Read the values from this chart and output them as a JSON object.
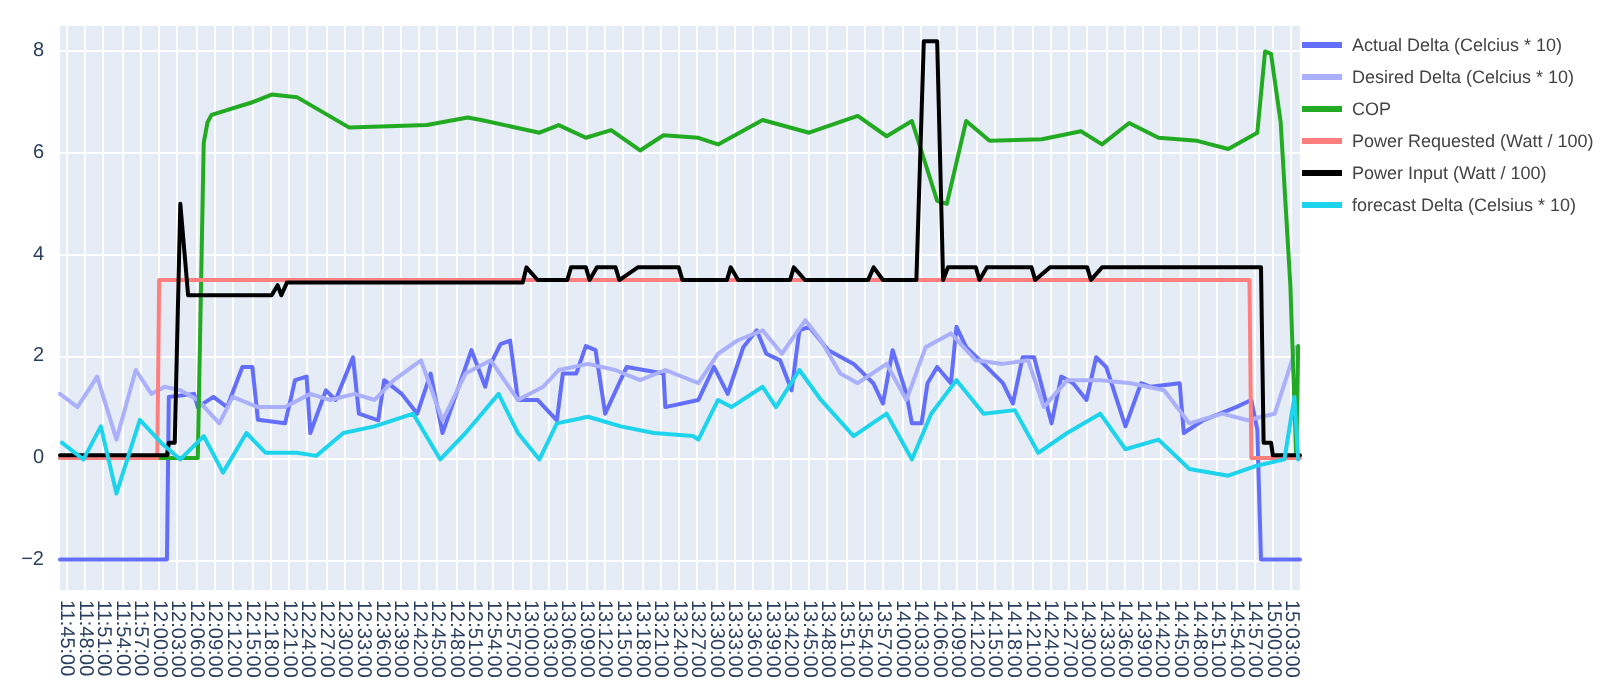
{
  "chart_data": {
    "type": "line",
    "grid": true,
    "legend": "top right",
    "marker": "none",
    "line_style": "solid",
    "xlim": [
      11.734,
      15.073
    ],
    "ylim": [
      -2.6,
      8.5
    ],
    "yticks": [
      {
        "value": -2,
        "label": "−2"
      },
      0,
      2,
      4,
      6,
      8
    ],
    "xticks": [
      {
        "value": 11.75,
        "label": "11:45:00"
      },
      {
        "value": 11.8,
        "label": "11:48:00"
      },
      {
        "value": 11.85,
        "label": "11:51:00"
      },
      {
        "value": 11.9,
        "label": "11:54:00"
      },
      {
        "value": 11.95,
        "label": "11:57:00"
      },
      {
        "value": 12,
        "label": "12:00:00"
      },
      {
        "value": 12.05,
        "label": "12:03:00"
      },
      {
        "value": 12.1,
        "label": "12:06:00"
      },
      {
        "value": 12.15,
        "label": "12:09:00"
      },
      {
        "value": 12.2,
        "label": "12:12:00"
      },
      {
        "value": 12.25,
        "label": "12:15:00"
      },
      {
        "value": 12.3,
        "label": "12:18:00"
      },
      {
        "value": 12.35,
        "label": "12:21:00"
      },
      {
        "value": 12.4,
        "label": "12:24:00"
      },
      {
        "value": 12.45,
        "label": "12:27:00"
      },
      {
        "value": 12.5,
        "label": "12:30:00"
      },
      {
        "value": 12.55,
        "label": "12:33:00"
      },
      {
        "value": 12.6,
        "label": "12:36:00"
      },
      {
        "value": 12.65,
        "label": "12:39:00"
      },
      {
        "value": 12.7,
        "label": "12:42:00"
      },
      {
        "value": 12.75,
        "label": "12:45:00"
      },
      {
        "value": 12.8,
        "label": "12:48:00"
      },
      {
        "value": 12.85,
        "label": "12:51:00"
      },
      {
        "value": 12.9,
        "label": "12:54:00"
      },
      {
        "value": 12.95,
        "label": "12:57:00"
      },
      {
        "value": 13,
        "label": "13:00:00"
      },
      {
        "value": 13.05,
        "label": "13:03:00"
      },
      {
        "value": 13.1,
        "label": "13:06:00"
      },
      {
        "value": 13.15,
        "label": "13:09:00"
      },
      {
        "value": 13.2,
        "label": "13:12:00"
      },
      {
        "value": 13.25,
        "label": "13:15:00"
      },
      {
        "value": 13.3,
        "label": "13:18:00"
      },
      {
        "value": 13.35,
        "label": "13:21:00"
      },
      {
        "value": 13.4,
        "label": "13:24:00"
      },
      {
        "value": 13.45,
        "label": "13:27:00"
      },
      {
        "value": 13.5,
        "label": "13:30:00"
      },
      {
        "value": 13.55,
        "label": "13:33:00"
      },
      {
        "value": 13.6,
        "label": "13:36:00"
      },
      {
        "value": 13.65,
        "label": "13:39:00"
      },
      {
        "value": 13.7,
        "label": "13:42:00"
      },
      {
        "value": 13.75,
        "label": "13:45:00"
      },
      {
        "value": 13.8,
        "label": "13:48:00"
      },
      {
        "value": 13.85,
        "label": "13:51:00"
      },
      {
        "value": 13.9,
        "label": "13:54:00"
      },
      {
        "value": 13.95,
        "label": "13:57:00"
      },
      {
        "value": 14,
        "label": "14:00:00"
      },
      {
        "value": 14.05,
        "label": "14:03:00"
      },
      {
        "value": 14.1,
        "label": "14:06:00"
      },
      {
        "value": 14.15,
        "label": "14:09:00"
      },
      {
        "value": 14.2,
        "label": "14:12:00"
      },
      {
        "value": 14.25,
        "label": "14:15:00"
      },
      {
        "value": 14.3,
        "label": "14:18:00"
      },
      {
        "value": 14.35,
        "label": "14:21:00"
      },
      {
        "value": 14.4,
        "label": "14:24:00"
      },
      {
        "value": 14.45,
        "label": "14:27:00"
      },
      {
        "value": 14.5,
        "label": "14:30:00"
      },
      {
        "value": 14.55,
        "label": "14:33:00"
      },
      {
        "value": 14.6,
        "label": "14:36:00"
      },
      {
        "value": 14.65,
        "label": "14:39:00"
      },
      {
        "value": 14.7,
        "label": "14:42:00"
      },
      {
        "value": 14.75,
        "label": "14:45:00"
      },
      {
        "value": 14.8,
        "label": "14:48:00"
      },
      {
        "value": 14.85,
        "label": "14:51:00"
      },
      {
        "value": 14.9,
        "label": "14:54:00"
      },
      {
        "value": 14.95,
        "label": "14:57:00"
      },
      {
        "value": 15,
        "label": "15:00:00"
      },
      {
        "value": 15.05,
        "label": "15:03:00"
      }
    ],
    "series": [
      {
        "name": "Actual Delta (Celcius * 10)",
        "color": "#636efa",
        "x": [
          11.734,
          12.022,
          12.027,
          12.095,
          12.105,
          12.147,
          12.184,
          12.225,
          12.252,
          12.267,
          12.34,
          12.367,
          12.398,
          12.408,
          12.45,
          12.476,
          12.523,
          12.539,
          12.591,
          12.607,
          12.654,
          12.696,
          12.732,
          12.764,
          12.811,
          12.842,
          12.879,
          12.894,
          12.92,
          12.946,
          12.967,
          13.02,
          13.072,
          13.088,
          13.124,
          13.15,
          13.176,
          13.202,
          13.26,
          13.359,
          13.364,
          13.453,
          13.495,
          13.532,
          13.574,
          13.61,
          13.636,
          13.673,
          13.704,
          13.725,
          13.751,
          13.803,
          13.871,
          13.924,
          13.95,
          13.976,
          14.013,
          14.028,
          14.054,
          14.07,
          14.096,
          14.133,
          14.148,
          14.174,
          14.221,
          14.273,
          14.3,
          14.326,
          14.357,
          14.404,
          14.43,
          14.462,
          14.498,
          14.524,
          14.551,
          14.603,
          14.645,
          14.671,
          14.749,
          14.76,
          14.812,
          14.901,
          14.942,
          14.958,
          14.968,
          15.073
        ],
        "values": [
          -2,
          -2,
          1.2,
          1.26,
          1.0,
          1.2,
          1.0,
          1.79,
          1.79,
          0.75,
          0.68,
          1.53,
          1.6,
          0.49,
          1.33,
          1.14,
          1.98,
          0.87,
          0.74,
          1.53,
          1.26,
          0.87,
          1.66,
          0.49,
          1.47,
          2.12,
          1.4,
          1.85,
          2.24,
          2.31,
          1.14,
          1.14,
          0.74,
          1.66,
          1.66,
          2.2,
          2.12,
          0.87,
          1.79,
          1.66,
          1.0,
          1.14,
          1.79,
          1.26,
          2.18,
          2.51,
          2.05,
          1.92,
          1.33,
          2.51,
          2.58,
          2.12,
          1.85,
          1.47,
          1.07,
          2.12,
          1.26,
          0.68,
          0.68,
          1.47,
          1.79,
          1.47,
          2.58,
          2.18,
          1.85,
          1.47,
          1.07,
          1.98,
          1.98,
          0.68,
          1.6,
          1.47,
          1.14,
          1.98,
          1.79,
          0.62,
          1.47,
          1.4,
          1.47,
          0.49,
          0.74,
          1.0,
          1.14,
          0.55,
          -2,
          -2
        ]
      },
      {
        "name": "Desired Delta (Celcius * 10)",
        "color": "#aab0fb",
        "x": [
          11.734,
          11.781,
          11.834,
          11.886,
          11.938,
          11.98,
          12.016,
          12.058,
          12.105,
          12.163,
          12.199,
          12.267,
          12.34,
          12.408,
          12.461,
          12.528,
          12.581,
          12.633,
          12.706,
          12.764,
          12.826,
          12.894,
          12.967,
          13.035,
          13.077,
          13.156,
          13.229,
          13.296,
          13.364,
          13.453,
          13.506,
          13.558,
          13.626,
          13.678,
          13.741,
          13.783,
          13.835,
          13.882,
          13.96,
          14.013,
          14.065,
          14.133,
          14.2,
          14.273,
          14.341,
          14.383,
          14.446,
          14.535,
          14.618,
          14.707,
          14.775,
          14.864,
          14.932,
          15.005,
          15.063
        ],
        "values": [
          1.26,
          1.0,
          1.6,
          0.36,
          1.73,
          1.26,
          1.4,
          1.33,
          1.14,
          0.68,
          1.2,
          1.0,
          1.0,
          1.26,
          1.14,
          1.26,
          1.14,
          1.53,
          1.92,
          0.74,
          1.66,
          1.92,
          1.14,
          1.4,
          1.73,
          1.85,
          1.73,
          1.53,
          1.73,
          1.47,
          2.05,
          2.31,
          2.51,
          2.05,
          2.71,
          2.31,
          1.66,
          1.47,
          1.85,
          1.14,
          2.18,
          2.45,
          1.92,
          1.85,
          1.92,
          1.0,
          1.53,
          1.53,
          1.47,
          1.33,
          0.68,
          0.87,
          0.74,
          0.87,
          2.18
        ]
      },
      {
        "name": "COP",
        "color": "#22aa22",
        "x": [
          11.734,
          12.105,
          12.121,
          12.131,
          12.142,
          12.252,
          12.304,
          12.372,
          12.513,
          12.722,
          12.832,
          12.868,
          13.025,
          13.077,
          13.15,
          13.218,
          13.296,
          13.359,
          13.453,
          13.506,
          13.626,
          13.751,
          13.882,
          13.96,
          14.028,
          14.096,
          14.122,
          14.174,
          14.237,
          14.378,
          14.483,
          14.54,
          14.613,
          14.692,
          14.796,
          14.88,
          14.958,
          14.979,
          14.995,
          15.021,
          15.047,
          15.063,
          15.068
        ],
        "values": [
          0,
          0,
          6.2,
          6.6,
          6.75,
          7.0,
          7.15,
          7.1,
          6.5,
          6.55,
          6.7,
          6.65,
          6.4,
          6.55,
          6.3,
          6.45,
          6.05,
          6.35,
          6.3,
          6.17,
          6.65,
          6.4,
          6.73,
          6.33,
          6.63,
          5.06,
          5.0,
          6.63,
          6.24,
          6.27,
          6.43,
          6.17,
          6.59,
          6.3,
          6.24,
          6.08,
          6.4,
          8.0,
          7.95,
          6.6,
          3.4,
          0,
          2.2
        ]
      },
      {
        "name": "Power Requested (Watt / 100)",
        "color": "#ff7f7f",
        "x": [
          11.734,
          11.996,
          12.001,
          14.937,
          14.942,
          15.073
        ],
        "values": [
          0,
          0,
          3.5,
          3.5,
          0,
          0
        ]
      },
      {
        "name": "Power Input (Watt / 100)",
        "color": "#000000",
        "x": [
          11.734,
          12.022,
          12.027,
          12.043,
          12.058,
          12.079,
          12.304,
          12.32,
          12.33,
          12.345,
          12.98,
          12.99,
          13.02,
          13.1,
          13.11,
          13.15,
          13.16,
          13.18,
          13.23,
          13.24,
          13.29,
          13.4,
          13.41,
          13.53,
          13.54,
          13.56,
          13.7,
          13.71,
          13.74,
          13.91,
          13.925,
          13.95,
          14.04,
          14.06,
          14.096,
          14.112,
          14.125,
          14.2,
          14.21,
          14.23,
          14.35,
          14.36,
          14.4,
          14.5,
          14.51,
          14.54,
          14.968,
          14.975,
          14.995,
          15.0,
          15.073
        ],
        "values": [
          0.05,
          0.05,
          0.3,
          0.3,
          5.0,
          3.2,
          3.2,
          3.4,
          3.2,
          3.45,
          3.45,
          3.75,
          3.5,
          3.5,
          3.75,
          3.75,
          3.5,
          3.75,
          3.75,
          3.5,
          3.75,
          3.75,
          3.5,
          3.5,
          3.75,
          3.5,
          3.5,
          3.75,
          3.5,
          3.5,
          3.75,
          3.5,
          3.5,
          8.2,
          8.2,
          3.5,
          3.75,
          3.75,
          3.5,
          3.75,
          3.75,
          3.5,
          3.75,
          3.75,
          3.5,
          3.75,
          3.75,
          0.3,
          0.3,
          0.05,
          0.05
        ]
      },
      {
        "name": "forecast Delta (Celsius * 10)",
        "color": "#1ed3ec",
        "x": [
          11.739,
          11.797,
          11.844,
          11.886,
          11.949,
          12.006,
          12.058,
          12.121,
          12.173,
          12.236,
          12.288,
          12.372,
          12.424,
          12.497,
          12.581,
          12.685,
          12.758,
          12.826,
          12.915,
          12.967,
          13.025,
          13.072,
          13.156,
          13.244,
          13.333,
          13.438,
          13.453,
          13.506,
          13.542,
          13.626,
          13.662,
          13.725,
          13.783,
          13.871,
          13.96,
          14.028,
          14.08,
          14.148,
          14.221,
          14.305,
          14.368,
          14.446,
          14.535,
          14.603,
          14.692,
          14.775,
          14.88,
          14.953,
          15.031,
          15.058,
          15.068
        ],
        "values": [
          0.3,
          -0.03,
          0.62,
          -0.7,
          0.75,
          0.3,
          -0.03,
          0.43,
          -0.29,
          0.49,
          0.1,
          0.1,
          0.04,
          0.49,
          0.62,
          0.87,
          -0.03,
          0.49,
          1.26,
          0.49,
          -0.03,
          0.68,
          0.81,
          0.62,
          0.49,
          0.43,
          0.36,
          1.14,
          1.0,
          1.4,
          1.0,
          1.73,
          1.14,
          0.43,
          0.87,
          -0.03,
          0.87,
          1.53,
          0.87,
          0.94,
          0.1,
          0.49,
          0.87,
          0.17,
          0.36,
          -0.22,
          -0.35,
          -0.16,
          -0.03,
          1.2,
          -0.03
        ]
      }
    ]
  }
}
